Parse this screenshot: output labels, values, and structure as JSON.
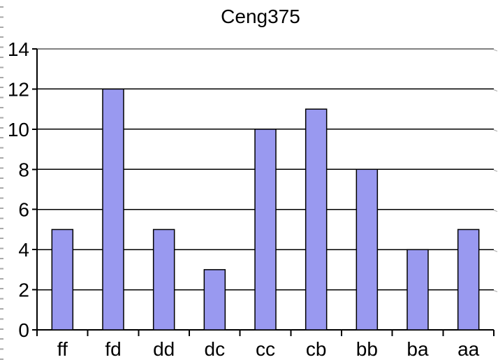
{
  "chart_data": {
    "type": "bar",
    "title": "Ceng375",
    "categories": [
      "ff",
      "fd",
      "dd",
      "dc",
      "cc",
      "cb",
      "bb",
      "ba",
      "aa"
    ],
    "values": [
      5,
      12,
      5,
      3,
      10,
      11,
      8,
      4,
      5
    ],
    "xlabel": "",
    "ylabel": "",
    "ylim": [
      0,
      14
    ],
    "yticks": [
      0,
      2,
      4,
      6,
      8,
      10,
      12,
      14
    ],
    "grid": "horizontal-black-lines",
    "legend": "none",
    "colors": {
      "bar_fill": "#9999f0",
      "bar_border": "#000000",
      "grid_line": "#000000",
      "axis_line": "#000000",
      "text": "#000000",
      "edge_tick": "#a9a9a9",
      "grid_end_mark": "#b4b4b4",
      "background": "#ffffff"
    }
  }
}
